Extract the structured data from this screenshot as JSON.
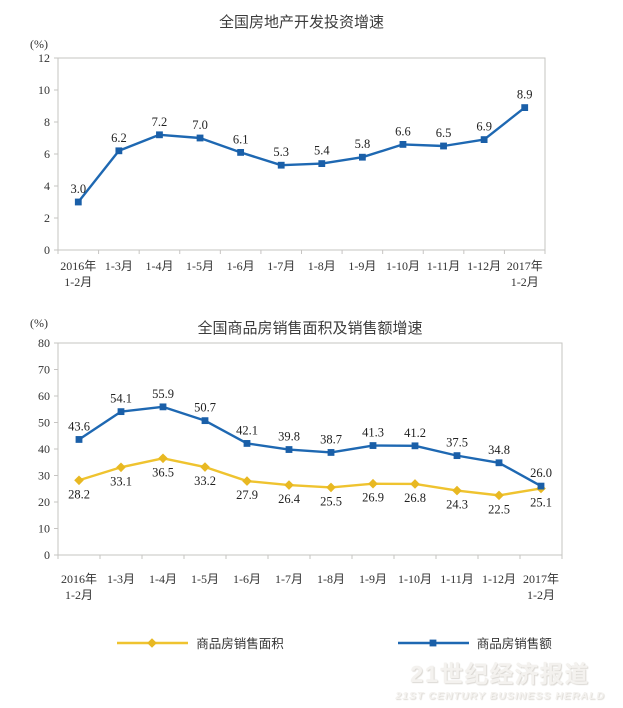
{
  "style": {
    "background": "#ffffff",
    "axis_color": "#c6c4c2",
    "text_color": "#333333",
    "label_color": "#222222",
    "title_color": "#3c3c3c",
    "blue": "#1E68B2",
    "yellow": "#EFC32F"
  },
  "chart_data": [
    {
      "type": "line",
      "title": "全国房地产开发投资增速",
      "unit_label": "(%)",
      "xlabel": "",
      "ylabel": "(%)",
      "ylim": [
        0,
        12
      ],
      "ytick_step": 2,
      "grid": false,
      "legend": false,
      "categories": [
        "2016年\n1-2月",
        "1-3月",
        "1-4月",
        "1-5月",
        "1-6月",
        "1-7月",
        "1-8月",
        "1-9月",
        "1-10月",
        "1-11月",
        "1-12月",
        "2017年\n1-2月"
      ],
      "series": [
        {
          "name": "全国房地产开发投资增速",
          "color": "#1E68B2",
          "marker": "square",
          "marker_color": "#1A5FA8",
          "label_position": "above",
          "values": [
            3.0,
            6.2,
            7.2,
            7.0,
            6.1,
            5.3,
            5.4,
            5.8,
            6.6,
            6.5,
            6.9,
            8.9
          ]
        }
      ]
    },
    {
      "type": "line",
      "title": "全国商品房销售面积及销售额增速",
      "unit_label": "(%)",
      "xlabel": "",
      "ylabel": "(%)",
      "ylim": [
        0,
        80
      ],
      "ytick_step": 10,
      "grid": false,
      "legend": true,
      "legend_position": "bottom",
      "categories": [
        "2016年\n1-2月",
        "1-3月",
        "1-4月",
        "1-5月",
        "1-6月",
        "1-7月",
        "1-8月",
        "1-9月",
        "1-10月",
        "1-11月",
        "1-12月",
        "2017年\n1-2月"
      ],
      "series": [
        {
          "name": "商品房销售面积",
          "color": "#EFC32F",
          "marker": "diamond",
          "marker_color": "#E8B822",
          "label_position": "below",
          "values": [
            28.2,
            33.1,
            36.5,
            33.2,
            27.9,
            26.4,
            25.5,
            26.9,
            26.8,
            24.3,
            22.5,
            25.1
          ]
        },
        {
          "name": "商品房销售额",
          "color": "#1E68B2",
          "marker": "square",
          "marker_color": "#1A5FA8",
          "label_position": "above",
          "values": [
            43.6,
            54.1,
            55.9,
            50.7,
            42.1,
            39.8,
            38.7,
            41.3,
            41.2,
            37.5,
            34.8,
            26.0
          ]
        }
      ]
    }
  ],
  "watermark": {
    "line1": "21世纪经济报道",
    "line2": "21ST CENTURY BUSINESS HERALD"
  }
}
